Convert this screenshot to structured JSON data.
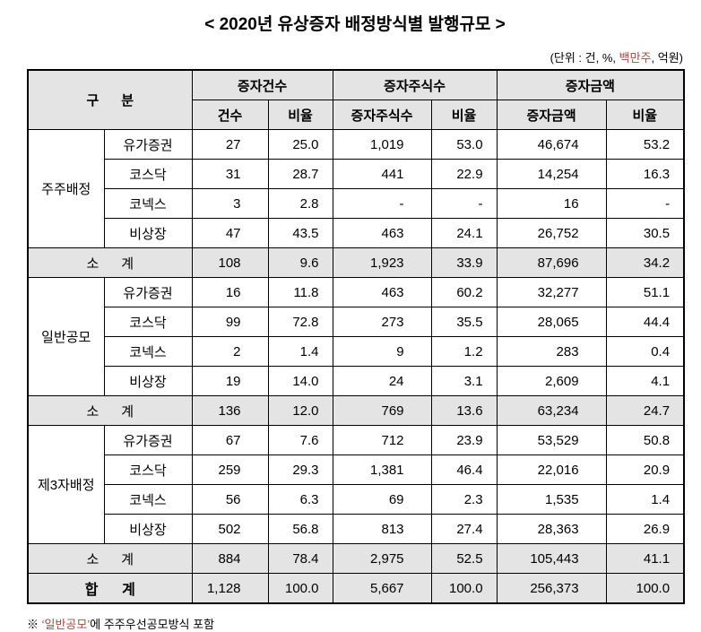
{
  "colors": {
    "highlight_text": "#9e4b43",
    "shaded_cell_bg": "#e4e4e4",
    "border": "#000000"
  },
  "title": "< 2020년 유상증자 배정방식별 발행규모 >",
  "units_note": {
    "prefix": "(단위 : 건, %, ",
    "highlight": "백만주",
    "suffix": ", 억원)"
  },
  "table": {
    "header": {
      "gubun": "구      분",
      "groups": [
        {
          "label": "증자건수",
          "sub": [
            "건수",
            "비율"
          ]
        },
        {
          "label": "증자주식수",
          "sub": [
            "증자주식수",
            "비율"
          ]
        },
        {
          "label": "증자금액",
          "sub": [
            "증자금액",
            "비율"
          ]
        }
      ]
    },
    "sections": [
      {
        "category": "주주배정",
        "rows": [
          {
            "market": "유가증권",
            "values": [
              "27",
              "25.0",
              "1,019",
              "53.0",
              "46,674",
              "53.2"
            ]
          },
          {
            "market": "코스닥",
            "values": [
              "31",
              "28.7",
              "441",
              "22.9",
              "14,254",
              "16.3"
            ]
          },
          {
            "market": "코넥스",
            "values": [
              "3",
              "2.8",
              "-",
              "-",
              "16",
              "-"
            ]
          },
          {
            "market": "비상장",
            "values": [
              "47",
              "43.5",
              "463",
              "24.1",
              "26,752",
              "30.5"
            ]
          }
        ],
        "subtotal": {
          "label": "소      계",
          "values": [
            "108",
            "9.6",
            "1,923",
            "33.9",
            "87,696",
            "34.2"
          ]
        }
      },
      {
        "category": "일반공모",
        "rows": [
          {
            "market": "유가증권",
            "values": [
              "16",
              "11.8",
              "463",
              "60.2",
              "32,277",
              "51.1"
            ]
          },
          {
            "market": "코스닥",
            "values": [
              "99",
              "72.8",
              "273",
              "35.5",
              "28,065",
              "44.4"
            ]
          },
          {
            "market": "코넥스",
            "values": [
              "2",
              "1.4",
              "9",
              "1.2",
              "283",
              "0.4"
            ]
          },
          {
            "market": "비상장",
            "values": [
              "19",
              "14.0",
              "24",
              "3.1",
              "2,609",
              "4.1"
            ]
          }
        ],
        "subtotal": {
          "label": "소      계",
          "values": [
            "136",
            "12.0",
            "769",
            "13.6",
            "63,234",
            "24.7"
          ]
        }
      },
      {
        "category": "제3자배정",
        "rows": [
          {
            "market": "유가증권",
            "values": [
              "67",
              "7.6",
              "712",
              "23.9",
              "53,529",
              "50.8"
            ]
          },
          {
            "market": "코스닥",
            "values": [
              "259",
              "29.3",
              "1,381",
              "46.4",
              "22,016",
              "20.9"
            ]
          },
          {
            "market": "코넥스",
            "values": [
              "56",
              "6.3",
              "69",
              "2.3",
              "1,535",
              "1.4"
            ]
          },
          {
            "market": "비상장",
            "values": [
              "502",
              "56.8",
              "813",
              "27.4",
              "28,363",
              "26.9"
            ]
          }
        ],
        "subtotal": {
          "label": "소      계",
          "values": [
            "884",
            "78.4",
            "2,975",
            "52.5",
            "105,443",
            "41.1"
          ]
        }
      }
    ],
    "total": {
      "label": "합      계",
      "values": [
        "1,128",
        "100.0",
        "5,667",
        "100.0",
        "256,373",
        "100.0"
      ]
    }
  },
  "footnote": {
    "prefix": "※ ",
    "highlight": "‘일반공모’",
    "suffix": "에 주주우선공모방식 포함"
  }
}
